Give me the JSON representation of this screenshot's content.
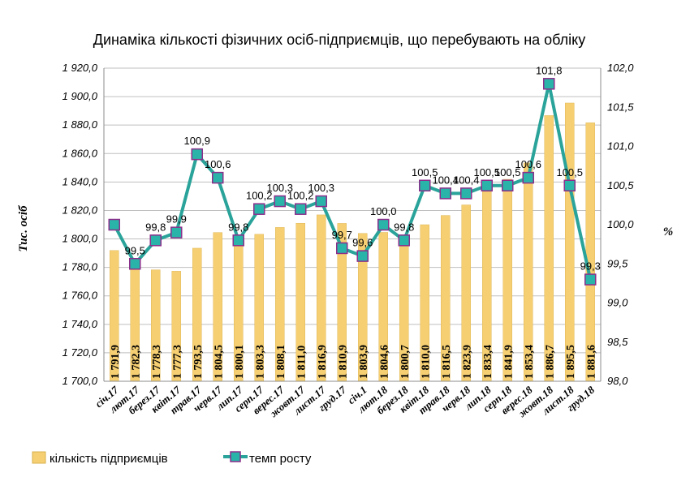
{
  "chart_data": {
    "type": "bar",
    "title": "Динаміка кількості фізичних осіб-підприємців, що перебувають на обліку",
    "ylabel": "Тис. осіб",
    "y2label": "%",
    "categories": [
      "січ.17",
      "лют.17",
      "берез.17",
      "квіт.17",
      "трав.17",
      "черв.17",
      "лип.17",
      "серп.17",
      "верес.17",
      "жовт.17",
      "лист.17",
      "груд.17",
      "січ.1",
      "лют.18",
      "берез.18",
      "квіт.18",
      "трав.18",
      "черв.18",
      "лип.18",
      "серп.18",
      "верес.18",
      "жовт.18",
      "лист.18",
      "груд.18"
    ],
    "ylim": [
      1700,
      1920
    ],
    "y2lim": [
      98.0,
      102.0
    ],
    "yticks": [
      "1 700,0",
      "1 720,0",
      "1 740,0",
      "1 760,0",
      "1 780,0",
      "1 800,0",
      "1 820,0",
      "1 840,0",
      "1 860,0",
      "1 880,0",
      "1 900,0",
      "1 920,0"
    ],
    "y2ticks": [
      "98,0",
      "98,5",
      "99,0",
      "99,5",
      "100,0",
      "100,5",
      "101,0",
      "101,5",
      "102,0"
    ],
    "grid": true,
    "legend_position": "bottom",
    "series": [
      {
        "name": "кількість підприємців",
        "type": "bar",
        "color": "#f5cf72",
        "values": [
          1791.9,
          1782.3,
          1778.3,
          1777.3,
          1793.5,
          1804.5,
          1800.1,
          1803.3,
          1808.1,
          1811.0,
          1816.9,
          1810.9,
          1803.9,
          1804.6,
          1800.7,
          1810.0,
          1816.5,
          1823.9,
          1833.4,
          1841.9,
          1853.4,
          1886.7,
          1895.5,
          1881.6
        ],
        "labels": [
          "1 791,9",
          "1 782,3",
          "1 778,3",
          "1 777,3",
          "1 793,5",
          "1 804,5",
          "1 800,1",
          "1 803,3",
          "1 808,1",
          "1 811,0",
          "1 816,9",
          "1 810,9",
          "1 803,9",
          "1 804,6",
          "1 800,7",
          "1 810,0",
          "1 816,5",
          "1 823,9",
          "1 833,4",
          "1 841,9",
          "1 853,4",
          "1 886,7",
          "1 895,5",
          "1 881,6"
        ]
      },
      {
        "name": "темп росту",
        "type": "line",
        "axis": "secondary",
        "color": "#2aa39a",
        "marker_color": "#2ab3a8",
        "marker_edge": "#8b2f8b",
        "values": [
          100.0,
          99.5,
          99.8,
          99.9,
          100.9,
          100.6,
          99.8,
          100.2,
          100.3,
          100.2,
          100.3,
          99.7,
          99.6,
          100.0,
          99.8,
          100.5,
          100.4,
          100.4,
          100.5,
          100.5,
          100.6,
          101.8,
          100.5,
          99.3
        ],
        "labels": [
          "",
          "99,5",
          "99,8",
          "99,9",
          "100,9",
          "100,6",
          "99,8",
          "100,2",
          "100,3",
          "100,2",
          "100,3",
          "99,7",
          "99,6",
          "100,0",
          "99,8",
          "100,5",
          "100,4",
          "100,4",
          "100,5",
          "100,5",
          "100,6",
          "101,8",
          "100,5",
          "99,3"
        ]
      }
    ]
  }
}
